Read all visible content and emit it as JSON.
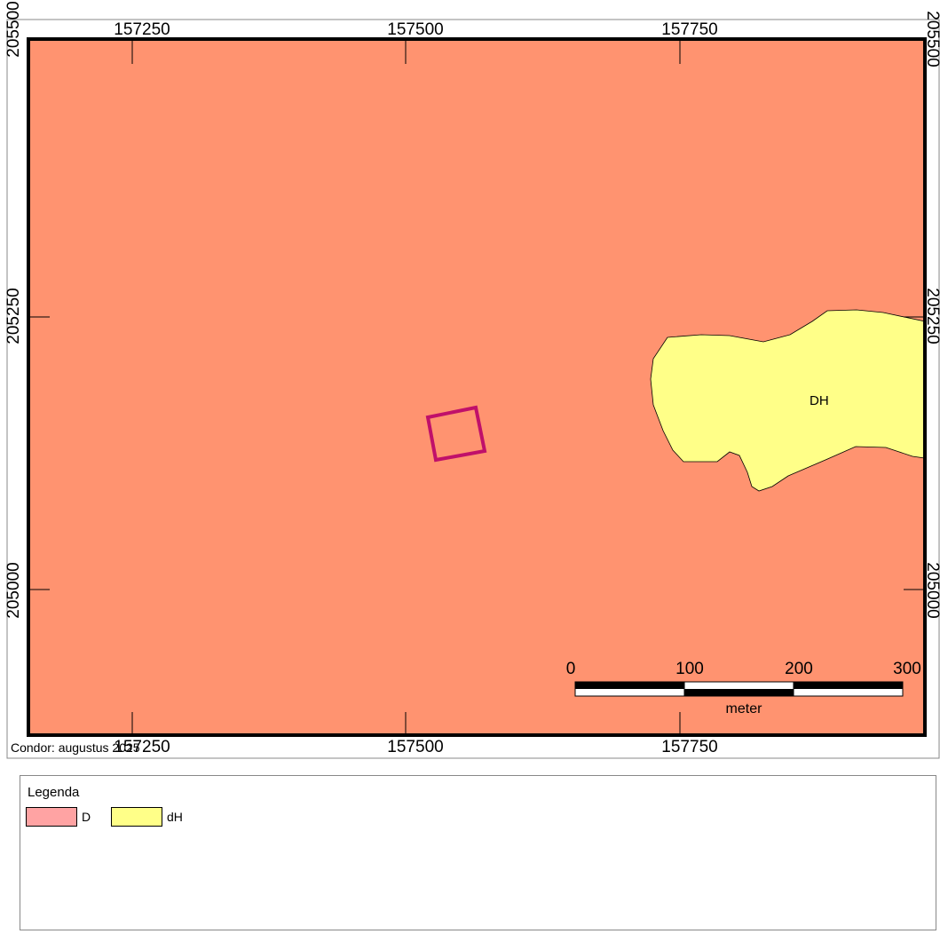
{
  "map": {
    "x_ticks_top": [
      "157250",
      "157500",
      "157750"
    ],
    "x_ticks_bottom": [
      "157250",
      "157500",
      "157750"
    ],
    "y_ticks_left": [
      "205500",
      "205250",
      "205000"
    ],
    "y_ticks_right": [
      "205500",
      "205250",
      "205000"
    ],
    "polygon_label": "DH",
    "credit": "Condor: augustus 2025",
    "colors": {
      "background_class": "#FF9370",
      "dh_class": "#FFFF88",
      "parcel_outline": "#C0106A",
      "frame": "#000000"
    }
  },
  "scalebar": {
    "labels": [
      "0",
      "100",
      "200",
      "300"
    ],
    "unit": "meter"
  },
  "legend": {
    "title": "Legenda",
    "items": [
      {
        "label": "D",
        "color": "#FFA3A3"
      },
      {
        "label": "dH",
        "color": "#FFFF88"
      }
    ]
  }
}
